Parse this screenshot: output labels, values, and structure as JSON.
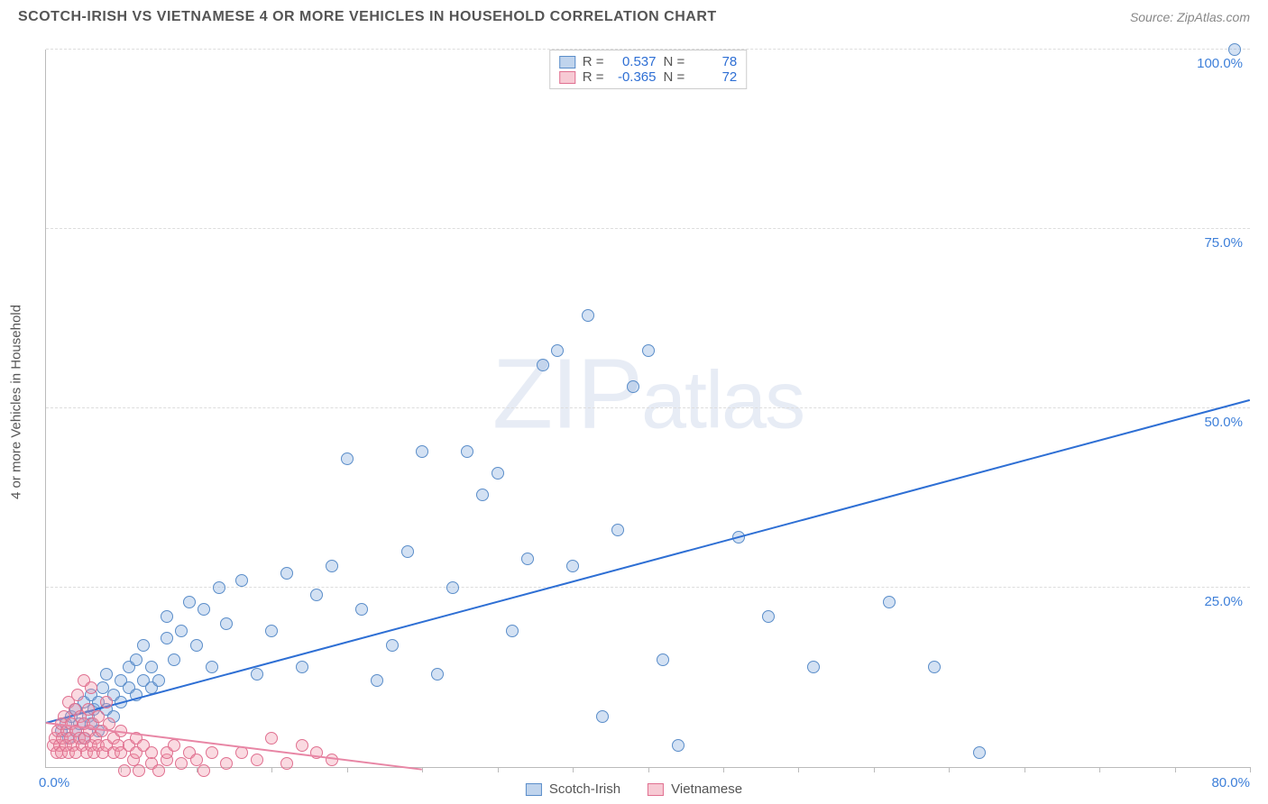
{
  "title": "SCOTCH-IRISH VS VIETNAMESE 4 OR MORE VEHICLES IN HOUSEHOLD CORRELATION CHART",
  "source_label": "Source: ",
  "source_value": "ZipAtlas.com",
  "watermark": "ZIPatlas",
  "chart": {
    "type": "scatter",
    "y_axis_label": "4 or more Vehicles in Household",
    "xlim": [
      0,
      80
    ],
    "ylim": [
      0,
      100
    ],
    "x_tick_step": 5,
    "y_ticks": [
      25,
      50,
      75,
      100
    ],
    "y_tick_labels": [
      "25.0%",
      "50.0%",
      "75.0%",
      "100.0%"
    ],
    "corner_labels": {
      "bottom_left": "0.0%",
      "bottom_right": "80.0%",
      "top_right": "100.0%"
    },
    "grid_color": "#dddddd",
    "background_color": "#ffffff",
    "series": [
      {
        "name": "Scotch-Irish",
        "color_fill": "rgba(130,170,220,0.35)",
        "color_stroke": "#5a8dc9",
        "trend_color": "#2e6fd4",
        "R": 0.537,
        "N": 78,
        "trend": {
          "x1": 0,
          "y1": 6,
          "x2": 80,
          "y2": 51
        },
        "points": [
          [
            1,
            5
          ],
          [
            1.3,
            6
          ],
          [
            1.5,
            4
          ],
          [
            1.7,
            7
          ],
          [
            2,
            5
          ],
          [
            2,
            8
          ],
          [
            2.2,
            6
          ],
          [
            2.5,
            9
          ],
          [
            2.5,
            4
          ],
          [
            2.8,
            7
          ],
          [
            3,
            6
          ],
          [
            3,
            10
          ],
          [
            3.2,
            8
          ],
          [
            3.5,
            9
          ],
          [
            3.5,
            5
          ],
          [
            3.8,
            11
          ],
          [
            4,
            8
          ],
          [
            4,
            13
          ],
          [
            4.5,
            10
          ],
          [
            4.5,
            7
          ],
          [
            5,
            12
          ],
          [
            5,
            9
          ],
          [
            5.5,
            14
          ],
          [
            5.5,
            11
          ],
          [
            6,
            10
          ],
          [
            6,
            15
          ],
          [
            6.5,
            12
          ],
          [
            6.5,
            17
          ],
          [
            7,
            14
          ],
          [
            7,
            11
          ],
          [
            7.5,
            12
          ],
          [
            8,
            18
          ],
          [
            8,
            21
          ],
          [
            8.5,
            15
          ],
          [
            9,
            19
          ],
          [
            9.5,
            23
          ],
          [
            10,
            17
          ],
          [
            10.5,
            22
          ],
          [
            11,
            14
          ],
          [
            11.5,
            25
          ],
          [
            12,
            20
          ],
          [
            13,
            26
          ],
          [
            14,
            13
          ],
          [
            15,
            19
          ],
          [
            16,
            27
          ],
          [
            17,
            14
          ],
          [
            18,
            24
          ],
          [
            19,
            28
          ],
          [
            20,
            43
          ],
          [
            21,
            22
          ],
          [
            22,
            12
          ],
          [
            23,
            17
          ],
          [
            24,
            30
          ],
          [
            25,
            44
          ],
          [
            26,
            13
          ],
          [
            27,
            25
          ],
          [
            28,
            44
          ],
          [
            29,
            38
          ],
          [
            30,
            41
          ],
          [
            31,
            19
          ],
          [
            32,
            29
          ],
          [
            33,
            56
          ],
          [
            34,
            58
          ],
          [
            35,
            28
          ],
          [
            36,
            63
          ],
          [
            37,
            7
          ],
          [
            38,
            33
          ],
          [
            39,
            53
          ],
          [
            40,
            58
          ],
          [
            41,
            15
          ],
          [
            42,
            3
          ],
          [
            46,
            32
          ],
          [
            48,
            21
          ],
          [
            51,
            14
          ],
          [
            56,
            23
          ],
          [
            59,
            14
          ],
          [
            62,
            2
          ],
          [
            79,
            100
          ]
        ]
      },
      {
        "name": "Vietnamese",
        "color_fill": "rgba(240,150,170,0.35)",
        "color_stroke": "#e07090",
        "trend_color": "#e886a5",
        "R": -0.365,
        "N": 72,
        "trend": {
          "x1": 0,
          "y1": 6,
          "x2": 25,
          "y2": -0.5
        },
        "points": [
          [
            0.5,
            3
          ],
          [
            0.6,
            4
          ],
          [
            0.7,
            2
          ],
          [
            0.8,
            5
          ],
          [
            0.9,
            3
          ],
          [
            1,
            6
          ],
          [
            1,
            2
          ],
          [
            1.1,
            4
          ],
          [
            1.2,
            7
          ],
          [
            1.3,
            3
          ],
          [
            1.4,
            5
          ],
          [
            1.5,
            2
          ],
          [
            1.5,
            9
          ],
          [
            1.6,
            4
          ],
          [
            1.7,
            6
          ],
          [
            1.8,
            3
          ],
          [
            1.9,
            8
          ],
          [
            2,
            5
          ],
          [
            2,
            2
          ],
          [
            2.1,
            10
          ],
          [
            2.2,
            4
          ],
          [
            2.3,
            7
          ],
          [
            2.4,
            3
          ],
          [
            2.5,
            6
          ],
          [
            2.5,
            12
          ],
          [
            2.6,
            4
          ],
          [
            2.7,
            2
          ],
          [
            2.8,
            8
          ],
          [
            2.9,
            5
          ],
          [
            3,
            3
          ],
          [
            3,
            11
          ],
          [
            3.1,
            6
          ],
          [
            3.2,
            2
          ],
          [
            3.3,
            4
          ],
          [
            3.5,
            7
          ],
          [
            3.5,
            3
          ],
          [
            3.7,
            5
          ],
          [
            3.8,
            2
          ],
          [
            4,
            9
          ],
          [
            4,
            3
          ],
          [
            4.2,
            6
          ],
          [
            4.5,
            2
          ],
          [
            4.5,
            4
          ],
          [
            4.8,
            3
          ],
          [
            5,
            2
          ],
          [
            5,
            5
          ],
          [
            5.2,
            -0.5
          ],
          [
            5.5,
            3
          ],
          [
            5.8,
            1
          ],
          [
            6,
            2
          ],
          [
            6,
            4
          ],
          [
            6.2,
            -0.5
          ],
          [
            6.5,
            3
          ],
          [
            7,
            0.5
          ],
          [
            7,
            2
          ],
          [
            7.5,
            -0.5
          ],
          [
            8,
            1
          ],
          [
            8,
            2
          ],
          [
            8.5,
            3
          ],
          [
            9,
            0.5
          ],
          [
            9.5,
            2
          ],
          [
            10,
            1
          ],
          [
            10.5,
            -0.5
          ],
          [
            11,
            2
          ],
          [
            12,
            0.5
          ],
          [
            13,
            2
          ],
          [
            14,
            1
          ],
          [
            15,
            4
          ],
          [
            16,
            0.5
          ],
          [
            17,
            3
          ],
          [
            18,
            2
          ],
          [
            19,
            1
          ]
        ]
      }
    ],
    "stats_legend": [
      {
        "swatch": "blue",
        "R_label": "R =",
        "R_val": "0.537",
        "N_label": "N =",
        "N_val": "78"
      },
      {
        "swatch": "pink",
        "R_label": "R =",
        "R_val": "-0.365",
        "N_label": "N =",
        "N_val": "72"
      }
    ],
    "bottom_legend": [
      {
        "swatch": "blue",
        "label": "Scotch-Irish"
      },
      {
        "swatch": "pink",
        "label": "Vietnamese"
      }
    ]
  }
}
